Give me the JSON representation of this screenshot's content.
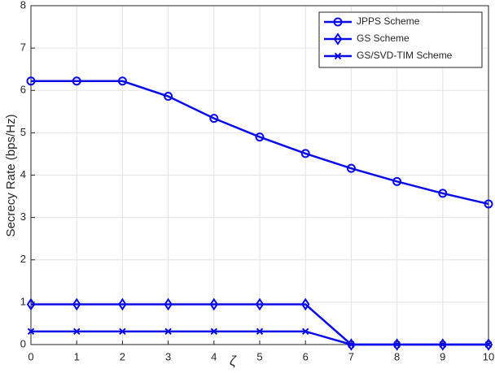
{
  "chart_data": {
    "type": "line",
    "x_label": "ζ",
    "y_label": "Secrecy Rate (bps/Hz)",
    "x": [
      0,
      1,
      2,
      3,
      4,
      5,
      6,
      7,
      8,
      9,
      10
    ],
    "series": [
      {
        "name": "JPPS Scheme",
        "color": "#0a0ae6",
        "marker": "circle",
        "values": [
          6.22,
          6.22,
          6.22,
          5.86,
          5.34,
          4.9,
          4.51,
          4.16,
          3.85,
          3.57,
          3.32
        ]
      },
      {
        "name": "GS Scheme",
        "color": "#0a0ae6",
        "marker": "diamond",
        "values": [
          0.95,
          0.95,
          0.95,
          0.95,
          0.95,
          0.95,
          0.95,
          0,
          0,
          0,
          0
        ]
      },
      {
        "name": "GS/SVD-TIM Scheme",
        "color": "#0a0ae6",
        "marker": "x",
        "values": [
          0.31,
          0.31,
          0.31,
          0.31,
          0.31,
          0.31,
          0.31,
          0,
          0,
          0,
          0
        ]
      }
    ],
    "xlim": [
      0,
      10
    ],
    "xticks": [
      0,
      1,
      2,
      3,
      4,
      5,
      6,
      7,
      8,
      9,
      10
    ],
    "ylim": [
      0,
      8
    ],
    "yticks": [
      0,
      1,
      2,
      3,
      4,
      5,
      6,
      7,
      8
    ],
    "grid": true,
    "legend": "upper right"
  }
}
